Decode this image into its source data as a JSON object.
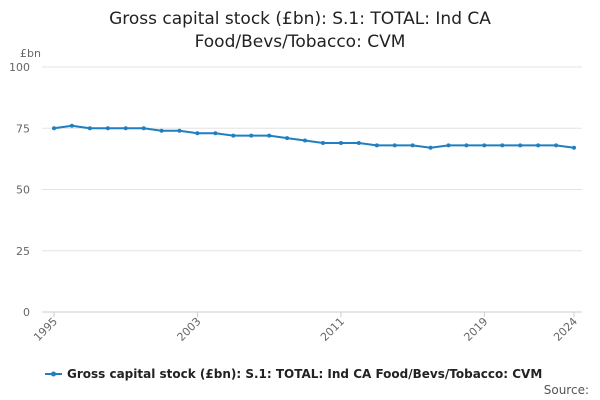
{
  "chart_data": {
    "type": "line",
    "title_lines": [
      "Gross capital stock (£bn): S.1: TOTAL: Ind CA",
      "Food/Bevs/Tobacco: CVM"
    ],
    "y_unit": "£bn",
    "ylim": [
      0,
      100
    ],
    "y_ticks": [
      "0",
      "25",
      "50",
      "75",
      "100"
    ],
    "x_ticks": [
      "1995",
      "2003",
      "2011",
      "2019",
      "2024"
    ],
    "x_tick_years": [
      1995,
      2003,
      2011,
      2019,
      2024
    ],
    "xlim": [
      1995,
      2024
    ],
    "grid": true,
    "legend_position": "bottom",
    "series": [
      {
        "name": "Gross capital stock (£bn): S.1: TOTAL: Ind CA Food/Bevs/Tobacco: CVM",
        "color": "#1f7fc0",
        "x": [
          1995,
          1996,
          1997,
          1998,
          1999,
          2000,
          2001,
          2002,
          2003,
          2004,
          2005,
          2006,
          2007,
          2008,
          2009,
          2010,
          2011,
          2012,
          2013,
          2014,
          2015,
          2016,
          2017,
          2018,
          2019,
          2020,
          2021,
          2022,
          2023,
          2024
        ],
        "values": [
          75,
          76,
          75,
          75,
          75,
          75,
          74,
          74,
          73,
          73,
          72,
          72,
          72,
          71,
          70,
          69,
          69,
          69,
          68,
          68,
          68,
          67,
          68,
          68,
          68,
          68,
          68,
          68,
          68,
          67
        ]
      }
    ]
  },
  "footer": {
    "source_label": "Source:"
  }
}
